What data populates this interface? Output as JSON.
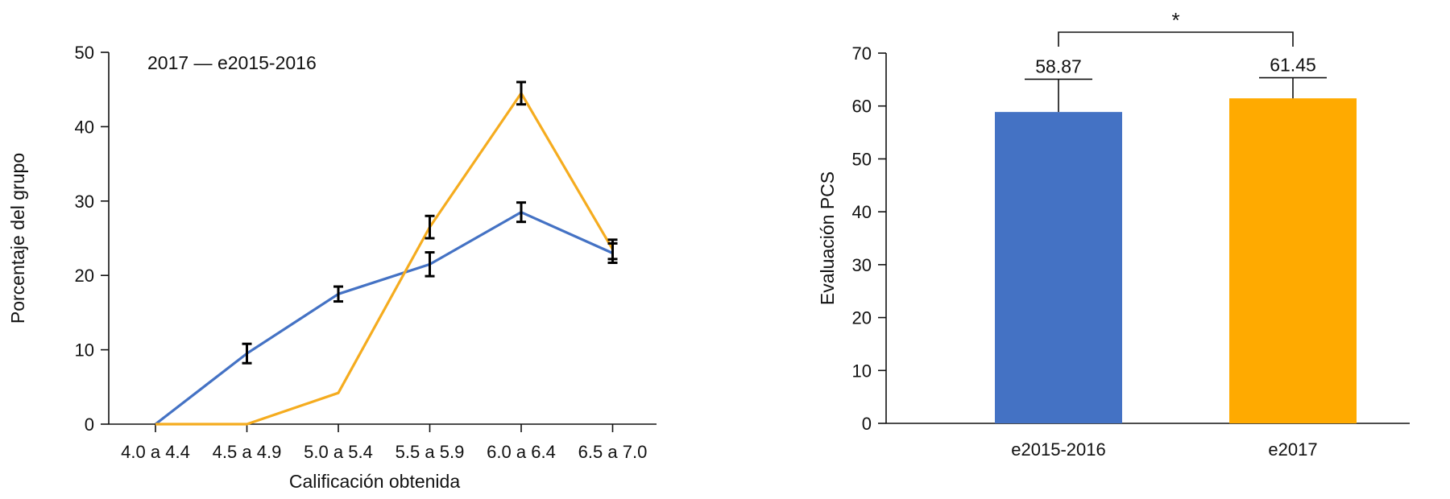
{
  "chart_data": [
    {
      "type": "line",
      "title": "",
      "xlabel": "Calificación obtenida",
      "ylabel": "Porcentaje del grupo",
      "ylim": [
        0,
        50
      ],
      "yticks": [
        "0",
        "10",
        "20",
        "30",
        "40",
        "50"
      ],
      "categories": [
        "4.0 a 4.4",
        "4.5 a 4.9",
        "5.0 a 5.4",
        "5.5 a 5.9",
        "6.0 a 6.4",
        "6.5 a 7.0"
      ],
      "legend_text": "2017  —  e2015-2016",
      "legend_position": "top-left",
      "series": [
        {
          "color": "#4472C4",
          "values": [
            0,
            9.5,
            17.5,
            21.5,
            28.5,
            23
          ],
          "error": [
            null,
            1.3,
            1.0,
            1.6,
            1.3,
            1.3
          ]
        },
        {
          "color": "#F5AC1F",
          "values": [
            0,
            0,
            4.2,
            26.5,
            44.5,
            23.5
          ],
          "error": [
            null,
            null,
            null,
            1.5,
            1.5,
            1.3
          ]
        }
      ]
    },
    {
      "type": "bar",
      "title": "",
      "xlabel": "",
      "ylabel": "Evaluación PCS",
      "ylim": [
        0,
        70
      ],
      "yticks": [
        "0",
        "10",
        "20",
        "30",
        "40",
        "50",
        "60",
        "70"
      ],
      "categories": [
        "e2015-2016",
        "e2017"
      ],
      "values": [
        58.87,
        61.45
      ],
      "value_labels": [
        "58.87",
        "61.45"
      ],
      "errors": [
        6.2,
        3.9
      ],
      "colors": [
        "#4472C4",
        "#FFAA00"
      ],
      "significance": "*"
    }
  ]
}
